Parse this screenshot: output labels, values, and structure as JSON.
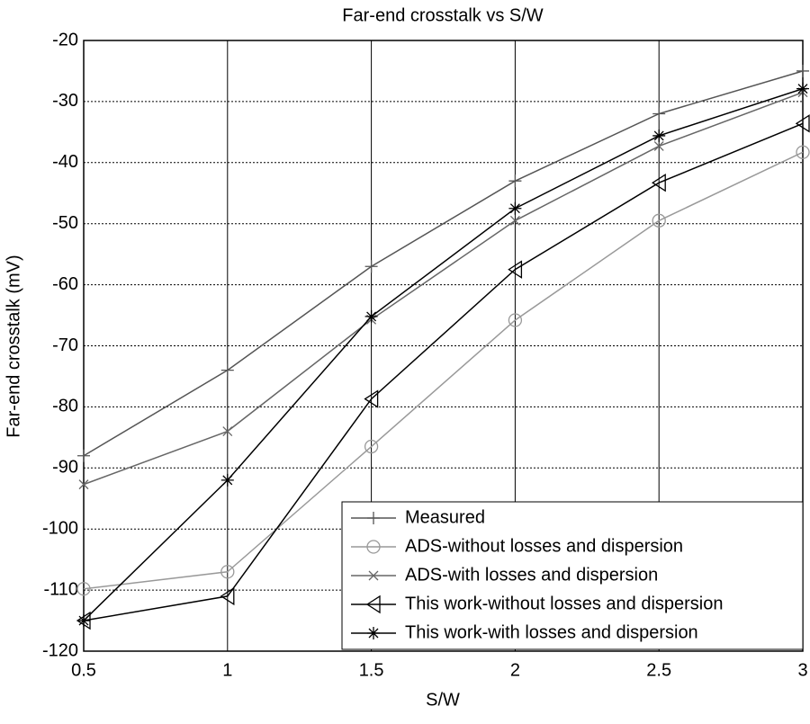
{
  "chart_data": {
    "type": "line",
    "title": "Far-end crosstalk vs S/W",
    "x_label": "S/W",
    "y_label": "Far-end crosstalk (mV)",
    "x": [
      0.5,
      1,
      1.5,
      2,
      2.5,
      3
    ],
    "series": [
      {
        "name": "Measured",
        "color": "#555555",
        "marker": "plus",
        "values": [
          -88,
          -74,
          -57,
          -43,
          -32,
          -25
        ]
      },
      {
        "name": "ADS-without losses and dispersion",
        "color": "#999999",
        "marker": "circle",
        "values": [
          -109.8,
          -107,
          -86.5,
          -65.8,
          -49.5,
          -38.3
        ]
      },
      {
        "name": "ADS-with losses and dispersion",
        "color": "#666666",
        "marker": "x",
        "values": [
          -92.7,
          -84,
          -65.7,
          -49.5,
          -37.3,
          -28.5
        ]
      },
      {
        "name": "This work-without losses and dispersion",
        "color": "#000000",
        "marker": "triangle-left",
        "values": [
          -115,
          -111,
          -78.7,
          -57.5,
          -43.3,
          -33.6
        ]
      },
      {
        "name": "This work-with losses and dispersion",
        "color": "#000000",
        "marker": "star",
        "values": [
          -115,
          -92,
          -65.2,
          -47.5,
          -35.6,
          -27.9
        ]
      }
    ],
    "xlim": [
      0.5,
      3
    ],
    "xticks": [
      0.5,
      1,
      1.5,
      2,
      2.5,
      3
    ],
    "ylim": [
      -120,
      -20
    ],
    "yticks": [
      -120,
      -110,
      -100,
      -90,
      -80,
      -70,
      -60,
      -50,
      -40,
      -30,
      -20
    ],
    "grid": true,
    "legend": "lower right"
  }
}
